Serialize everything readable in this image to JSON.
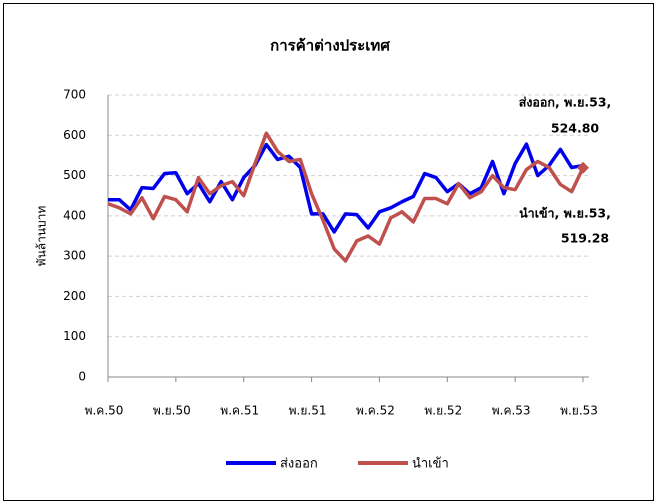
{
  "chart_data": {
    "type": "line",
    "title": "การค้าต่างประเทศ",
    "y_label": "พันล้านบาท",
    "categories": [
      "พ.ค.50",
      null,
      null,
      null,
      null,
      null,
      "พ.ย.50",
      null,
      null,
      null,
      null,
      null,
      "พ.ค.51",
      null,
      null,
      null,
      null,
      null,
      "พ.ย.51",
      null,
      null,
      null,
      null,
      null,
      "พ.ค.52",
      null,
      null,
      null,
      null,
      null,
      "พ.ย.52",
      null,
      null,
      null,
      null,
      null,
      "พ.ค.53",
      null,
      null,
      null,
      null,
      null,
      "พ.ย.53"
    ],
    "series": [
      {
        "name": "ส่งออก",
        "color": "#0000ee",
        "values": [
          440,
          440,
          415,
          470,
          468,
          505,
          507,
          455,
          480,
          435,
          485,
          440,
          495,
          525,
          577,
          540,
          548,
          520,
          405,
          405,
          360,
          405,
          403,
          370,
          410,
          420,
          435,
          448,
          505,
          495,
          460,
          480,
          455,
          470,
          535,
          455,
          530,
          578,
          500,
          525,
          565,
          520,
          524.8
        ]
      },
      {
        "name": "นำเข้า",
        "color": "#c0504d",
        "values": [
          430,
          420,
          405,
          445,
          393,
          448,
          440,
          410,
          495,
          455,
          475,
          485,
          450,
          530,
          605,
          560,
          535,
          540,
          455,
          390,
          318,
          288,
          338,
          350,
          330,
          395,
          410,
          385,
          443,
          443,
          430,
          480,
          445,
          460,
          500,
          470,
          465,
          515,
          535,
          520,
          478,
          460,
          519.28
        ]
      }
    ],
    "annotations": [
      {
        "lines": [
          "ส่งออก, พ.ย.53,",
          "524.80"
        ]
      },
      {
        "lines": [
          "นำเข้า, พ.ย.53,",
          "519.28"
        ]
      }
    ],
    "ylim": [
      0,
      700
    ],
    "yticks": [
      0,
      100,
      200,
      300,
      400,
      500,
      600,
      700
    ],
    "grid": true,
    "legend": "bottom"
  }
}
